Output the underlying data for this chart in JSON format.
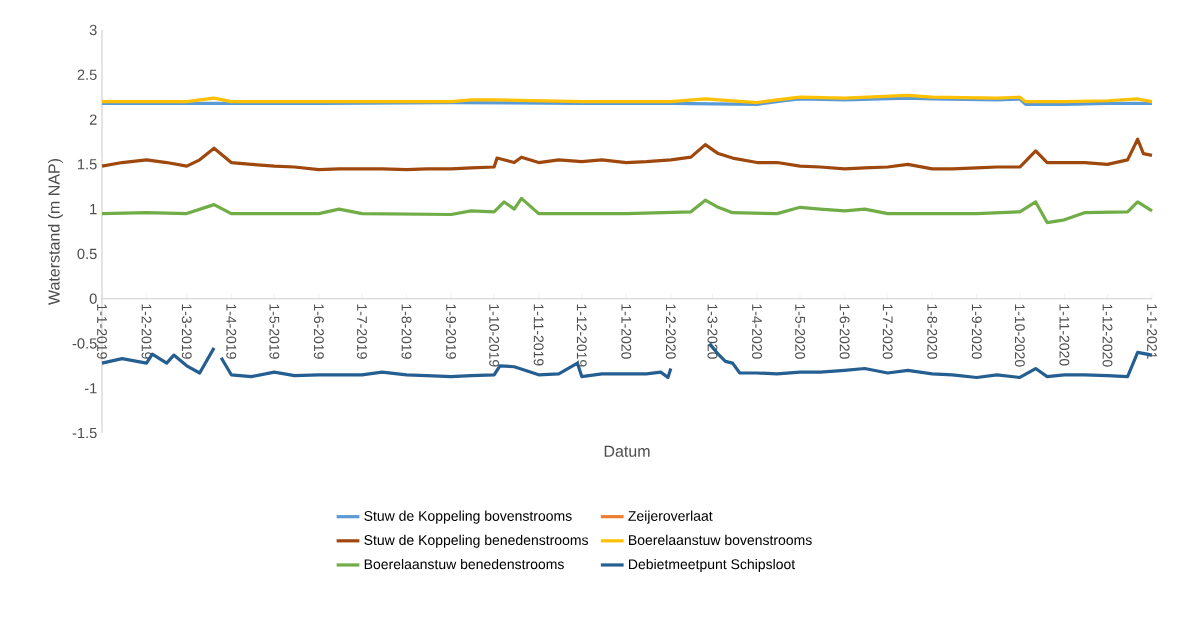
{
  "chart_data": {
    "type": "line",
    "xlabel": "Datum",
    "ylabel": "Waterstand (m NAP)",
    "xlim": [
      "2019-01-01",
      "2021-01-01"
    ],
    "ylim": [
      -1.5,
      3
    ],
    "yticks": [
      -1.5,
      -1,
      -0.5,
      0,
      0.5,
      1,
      1.5,
      2,
      2.5,
      3
    ],
    "xticks": [
      {
        "value": "2019-01-01",
        "label": "1-1-2019"
      },
      {
        "value": "2019-02-01",
        "label": "1-2-2019"
      },
      {
        "value": "2019-03-01",
        "label": "1-3-2019"
      },
      {
        "value": "2019-04-01",
        "label": "1-4-2019"
      },
      {
        "value": "2019-05-01",
        "label": "1-5-2019"
      },
      {
        "value": "2019-06-01",
        "label": "1-6-2019"
      },
      {
        "value": "2019-07-01",
        "label": "1-7-2019"
      },
      {
        "value": "2019-08-01",
        "label": "1-8-2019"
      },
      {
        "value": "2019-09-01",
        "label": "1-9-2019"
      },
      {
        "value": "2019-10-01",
        "label": "1-10-2019"
      },
      {
        "value": "2019-11-01",
        "label": "1-11-2019"
      },
      {
        "value": "2019-12-01",
        "label": "1-12-2019"
      },
      {
        "value": "2020-01-01",
        "label": "1-1-2020"
      },
      {
        "value": "2020-02-01",
        "label": "1-2-2020"
      },
      {
        "value": "2020-03-01",
        "label": "1-3-2020"
      },
      {
        "value": "2020-04-01",
        "label": "1-4-2020"
      },
      {
        "value": "2020-05-01",
        "label": "1-5-2020"
      },
      {
        "value": "2020-06-01",
        "label": "1-6-2020"
      },
      {
        "value": "2020-07-01",
        "label": "1-7-2020"
      },
      {
        "value": "2020-08-01",
        "label": "1-8-2020"
      },
      {
        "value": "2020-09-01",
        "label": "1-9-2020"
      },
      {
        "value": "2020-10-01",
        "label": "1-10-2020"
      },
      {
        "value": "2020-11-01",
        "label": "1-11-2020"
      },
      {
        "value": "2020-12-01",
        "label": "1-12-2020"
      },
      {
        "value": "2021-01-01",
        "label": "1-1-2021"
      }
    ],
    "legend": "bottom",
    "grid": false,
    "marker": "none",
    "line_style": "solid",
    "series": [
      {
        "name": "Stuw de Koppeling bovenstrooms",
        "color": "#5b9bd5",
        "x": [
          "2019-01-01",
          "2019-03-01",
          "2019-06-01",
          "2019-09-01",
          "2019-12-01",
          "2020-02-01",
          "2020-04-01",
          "2020-04-20",
          "2020-05-01",
          "2020-06-01",
          "2020-07-15",
          "2020-08-01",
          "2020-09-15",
          "2020-10-01",
          "2020-10-05",
          "2020-11-01",
          "2020-12-01",
          "2021-01-01"
        ],
        "values": [
          2.18,
          2.18,
          2.18,
          2.19,
          2.18,
          2.18,
          2.17,
          2.21,
          2.23,
          2.22,
          2.24,
          2.23,
          2.22,
          2.23,
          2.17,
          2.17,
          2.18,
          2.18
        ]
      },
      {
        "name": "Zeijeroverlaat",
        "color": "#ed7d31"
      },
      {
        "name": "Stuw de Koppeling benedenstrooms",
        "color": "#9e480e",
        "x": [
          "2019-01-01",
          "2019-01-15",
          "2019-02-01",
          "2019-02-15",
          "2019-03-01",
          "2019-03-10",
          "2019-03-20",
          "2019-04-01",
          "2019-04-15",
          "2019-05-01",
          "2019-05-15",
          "2019-06-01",
          "2019-06-15",
          "2019-07-01",
          "2019-07-15",
          "2019-08-01",
          "2019-08-15",
          "2019-09-01",
          "2019-09-15",
          "2019-10-01",
          "2019-10-03",
          "2019-10-15",
          "2019-10-20",
          "2019-11-01",
          "2019-11-15",
          "2019-12-01",
          "2019-12-15",
          "2020-01-01",
          "2020-01-15",
          "2020-02-01",
          "2020-02-15",
          "2020-02-25",
          "2020-03-05",
          "2020-03-15",
          "2020-04-01",
          "2020-04-15",
          "2020-05-01",
          "2020-05-15",
          "2020-06-01",
          "2020-06-15",
          "2020-07-01",
          "2020-07-15",
          "2020-08-01",
          "2020-08-15",
          "2020-09-01",
          "2020-09-15",
          "2020-10-01",
          "2020-10-12",
          "2020-10-20",
          "2020-11-01",
          "2020-11-15",
          "2020-12-01",
          "2020-12-15",
          "2020-12-22",
          "2020-12-26",
          "2021-01-01"
        ],
        "values": [
          1.48,
          1.52,
          1.55,
          1.52,
          1.48,
          1.55,
          1.68,
          1.52,
          1.5,
          1.48,
          1.47,
          1.44,
          1.45,
          1.45,
          1.45,
          1.44,
          1.45,
          1.45,
          1.46,
          1.47,
          1.57,
          1.52,
          1.58,
          1.52,
          1.55,
          1.53,
          1.55,
          1.52,
          1.53,
          1.55,
          1.58,
          1.72,
          1.62,
          1.57,
          1.52,
          1.52,
          1.48,
          1.47,
          1.45,
          1.46,
          1.47,
          1.5,
          1.45,
          1.45,
          1.46,
          1.47,
          1.47,
          1.65,
          1.52,
          1.52,
          1.52,
          1.5,
          1.55,
          1.78,
          1.62,
          1.6
        ]
      },
      {
        "name": "Boerelaanstuw bovenstrooms",
        "color": "#ffc000",
        "x": [
          "2019-01-01",
          "2019-02-01",
          "2019-03-01",
          "2019-03-20",
          "2019-04-01",
          "2019-06-01",
          "2019-09-01",
          "2019-09-15",
          "2019-10-01",
          "2019-12-01",
          "2020-02-01",
          "2020-02-25",
          "2020-04-01",
          "2020-04-15",
          "2020-05-01",
          "2020-06-01",
          "2020-07-15",
          "2020-08-01",
          "2020-09-15",
          "2020-10-01",
          "2020-10-05",
          "2020-11-01",
          "2020-12-01",
          "2020-12-22",
          "2021-01-01"
        ],
        "values": [
          2.2,
          2.2,
          2.2,
          2.24,
          2.2,
          2.2,
          2.2,
          2.22,
          2.22,
          2.2,
          2.2,
          2.23,
          2.19,
          2.22,
          2.25,
          2.24,
          2.27,
          2.25,
          2.24,
          2.25,
          2.2,
          2.2,
          2.21,
          2.23,
          2.2
        ]
      },
      {
        "name": "Boerelaanstuw benedenstrooms",
        "color": "#70ad47",
        "x": [
          "2019-01-01",
          "2019-02-01",
          "2019-03-01",
          "2019-03-20",
          "2019-04-01",
          "2019-06-01",
          "2019-06-15",
          "2019-07-01",
          "2019-09-01",
          "2019-09-15",
          "2019-10-01",
          "2019-10-08",
          "2019-10-15",
          "2019-10-20",
          "2019-11-01",
          "2020-01-01",
          "2020-02-15",
          "2020-02-25",
          "2020-03-05",
          "2020-03-15",
          "2020-04-15",
          "2020-05-01",
          "2020-05-15",
          "2020-06-01",
          "2020-06-15",
          "2020-07-01",
          "2020-09-01",
          "2020-10-01",
          "2020-10-12",
          "2020-10-20",
          "2020-11-01",
          "2020-11-15",
          "2020-12-15",
          "2020-12-22",
          "2021-01-01"
        ],
        "values": [
          0.95,
          0.96,
          0.95,
          1.05,
          0.95,
          0.95,
          1.0,
          0.95,
          0.94,
          0.98,
          0.97,
          1.08,
          1.0,
          1.12,
          0.95,
          0.95,
          0.97,
          1.1,
          1.02,
          0.96,
          0.95,
          1.02,
          1.0,
          0.98,
          1.0,
          0.95,
          0.95,
          0.97,
          1.08,
          0.85,
          0.88,
          0.96,
          0.97,
          1.08,
          0.98
        ]
      },
      {
        "name": "Debietmeetpunt Schipsloot",
        "color": "#255e91",
        "x": [
          "2019-01-01",
          "2019-01-15",
          "2019-02-01",
          "2019-02-05",
          "2019-02-15",
          "2019-02-20",
          "2019-03-01",
          "2019-03-10",
          "2019-03-20",
          "2019-03-22",
          "2019-03-25",
          "2019-04-01",
          "2019-04-15",
          "2019-05-01",
          "2019-05-15",
          "2019-06-01",
          "2019-06-15",
          "2019-07-01",
          "2019-07-15",
          "2019-08-01",
          "2019-08-15",
          "2019-09-01",
          "2019-09-15",
          "2019-10-01",
          "2019-10-05",
          "2019-10-15",
          "2019-11-01",
          "2019-11-15",
          "2019-11-28",
          "2019-12-01",
          "2019-12-15",
          "2020-01-01",
          "2020-01-15",
          "2020-01-25",
          "2020-01-30",
          "2020-02-01",
          "2020-02-05",
          "2020-02-28",
          "2020-03-05",
          "2020-03-10",
          "2020-03-15",
          "2020-03-20",
          "2020-04-01",
          "2020-04-15",
          "2020-05-01",
          "2020-05-15",
          "2020-06-01",
          "2020-06-15",
          "2020-07-01",
          "2020-07-15",
          "2020-08-01",
          "2020-08-15",
          "2020-09-01",
          "2020-09-15",
          "2020-10-01",
          "2020-10-12",
          "2020-10-20",
          "2020-11-01",
          "2020-11-15",
          "2020-12-01",
          "2020-12-15",
          "2020-12-22",
          "2021-01-01"
        ],
        "values": [
          -0.72,
          -0.67,
          -0.72,
          -0.62,
          -0.72,
          -0.63,
          -0.75,
          -0.83,
          -0.55,
          null,
          -0.66,
          -0.85,
          -0.87,
          -0.82,
          -0.86,
          -0.85,
          -0.85,
          -0.85,
          -0.82,
          -0.85,
          -0.86,
          -0.87,
          -0.86,
          -0.85,
          -0.75,
          -0.76,
          -0.85,
          -0.84,
          -0.72,
          -0.87,
          -0.84,
          -0.84,
          -0.84,
          -0.82,
          -0.88,
          -0.78,
          null,
          -0.5,
          -0.62,
          -0.7,
          -0.72,
          -0.83,
          -0.83,
          -0.84,
          -0.82,
          -0.82,
          -0.8,
          -0.78,
          -0.83,
          -0.8,
          -0.84,
          -0.85,
          -0.88,
          -0.85,
          -0.88,
          -0.78,
          -0.87,
          -0.85,
          -0.85,
          -0.86,
          -0.87,
          -0.6,
          -0.63
        ]
      }
    ]
  }
}
